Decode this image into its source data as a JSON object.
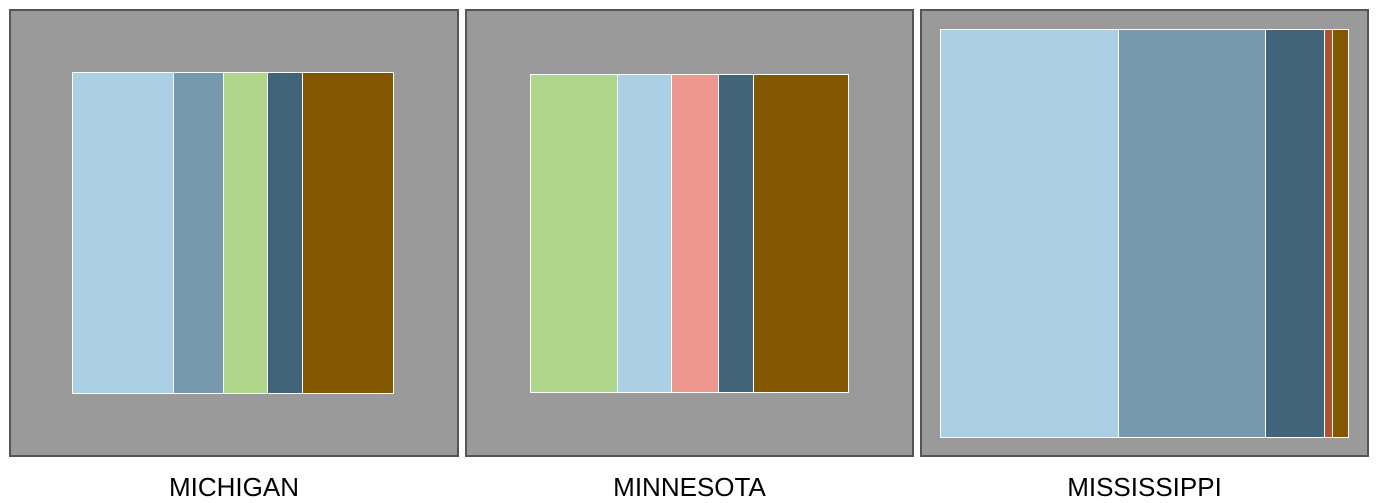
{
  "chart_data": [
    {
      "type": "treemap",
      "title": "MICHIGAN",
      "total_area_fraction": 0.525,
      "segments": [
        {
          "color": "#abcfe4",
          "share": 0.314
        },
        {
          "color": "#7799ad",
          "share": 0.157
        },
        {
          "color": "#b0d68b",
          "share": 0.138
        },
        {
          "color": "#41647b",
          "share": 0.108
        },
        {
          "color": "#835700",
          "share": 0.283
        }
      ]
    },
    {
      "type": "treemap",
      "title": "MINNESOTA",
      "total_area_fraction": 0.516,
      "segments": [
        {
          "color": "#b0d68b",
          "share": 0.27
        },
        {
          "color": "#abcfe4",
          "share": 0.17
        },
        {
          "color": "#ed978f",
          "share": 0.149
        },
        {
          "color": "#41647b",
          "share": 0.109
        },
        {
          "color": "#835700",
          "share": 0.302
        }
      ]
    },
    {
      "type": "treemap",
      "title": "MISSISSIPPI",
      "total_area_fraction": 0.85,
      "segments": [
        {
          "color": "#abcfe4",
          "share": 0.434
        },
        {
          "color": "#7799ad",
          "share": 0.361
        },
        {
          "color": "#41647b",
          "share": 0.146
        },
        {
          "color": "#b1522f",
          "share": 0.019
        },
        {
          "color": "#835700",
          "share": 0.04
        }
      ]
    }
  ]
}
